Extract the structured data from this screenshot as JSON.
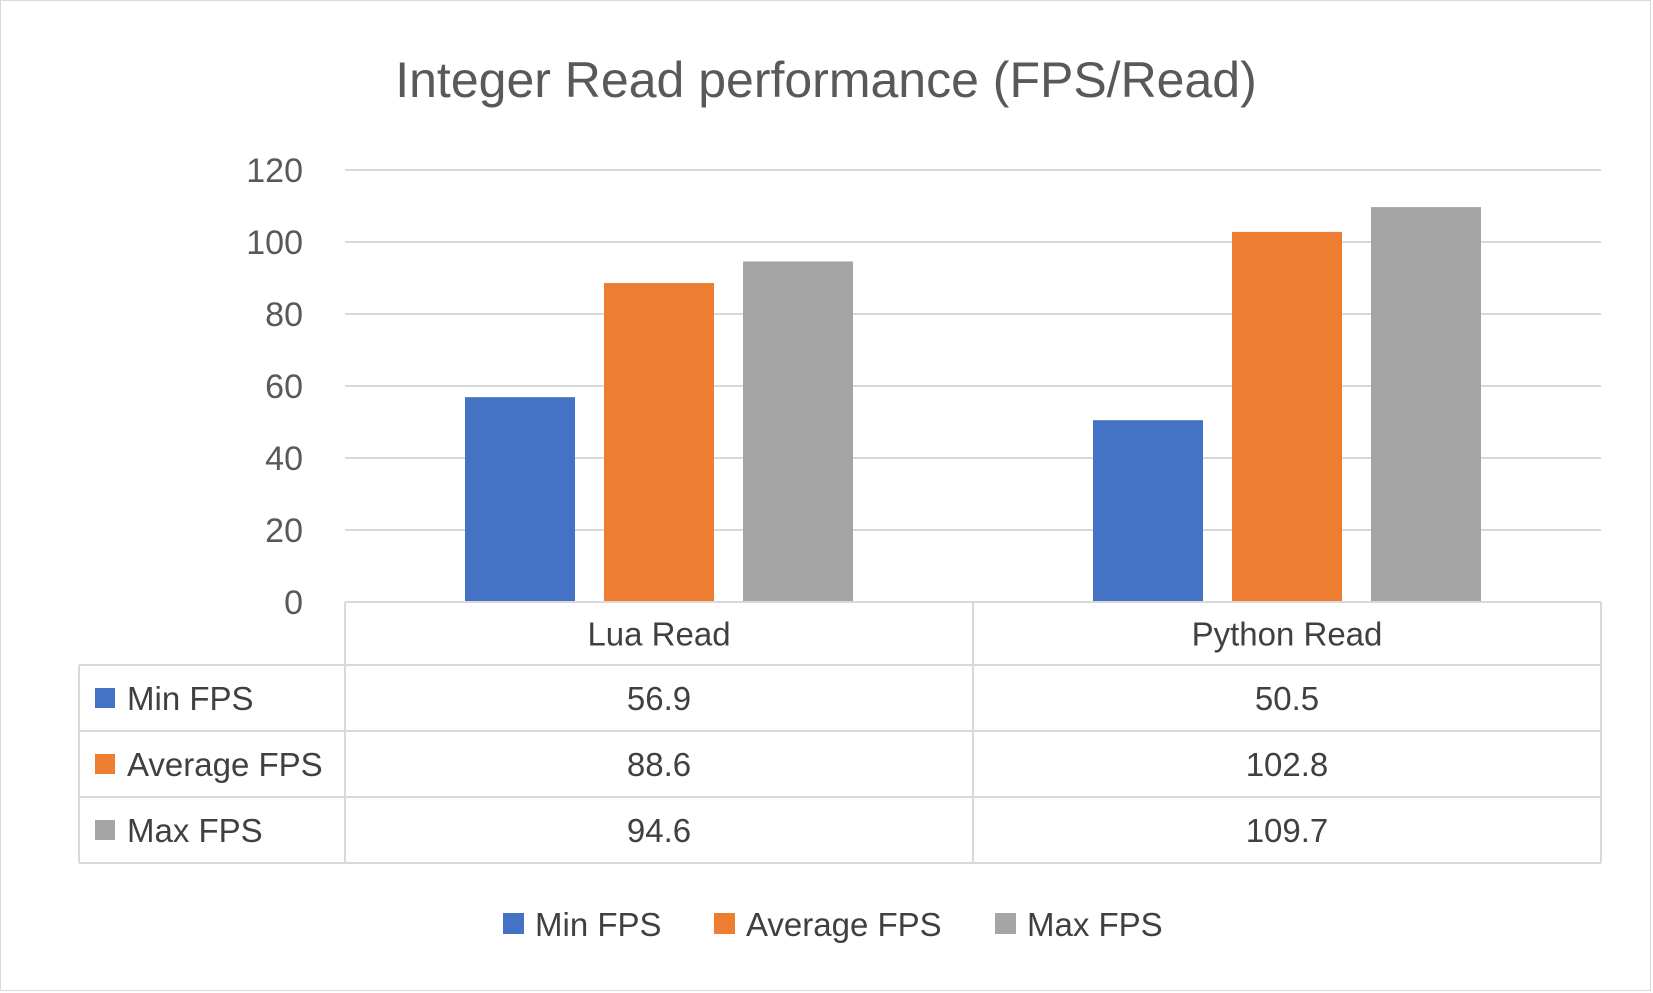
{
  "chart_data": {
    "type": "bar",
    "title": "Integer Read performance (FPS/Read)",
    "xlabel": "",
    "ylabel": "",
    "categories": [
      "Lua Read",
      "Python Read"
    ],
    "series": [
      {
        "name": "Min FPS",
        "values": [
          56.9,
          50.5
        ],
        "color": "#4472c4"
      },
      {
        "name": "Average FPS",
        "values": [
          88.6,
          102.8
        ],
        "color": "#ed7d31"
      },
      {
        "name": "Max FPS",
        "values": [
          94.6,
          109.7
        ],
        "color": "#a5a5a5"
      }
    ],
    "ylim": [
      0,
      120
    ],
    "yticks": [
      0,
      20,
      40,
      60,
      80,
      100,
      120
    ],
    "grid": true,
    "data_table": {
      "rows": [
        {
          "label": "Min FPS",
          "values": [
            "56.9",
            "50.5"
          ]
        },
        {
          "label": "Average FPS",
          "values": [
            "88.6",
            "102.8"
          ]
        },
        {
          "label": "Max FPS",
          "values": [
            "94.6",
            "109.7"
          ]
        }
      ]
    },
    "legend": {
      "position": "bottom",
      "items": [
        "Min FPS",
        "Average FPS",
        "Max FPS"
      ]
    }
  }
}
